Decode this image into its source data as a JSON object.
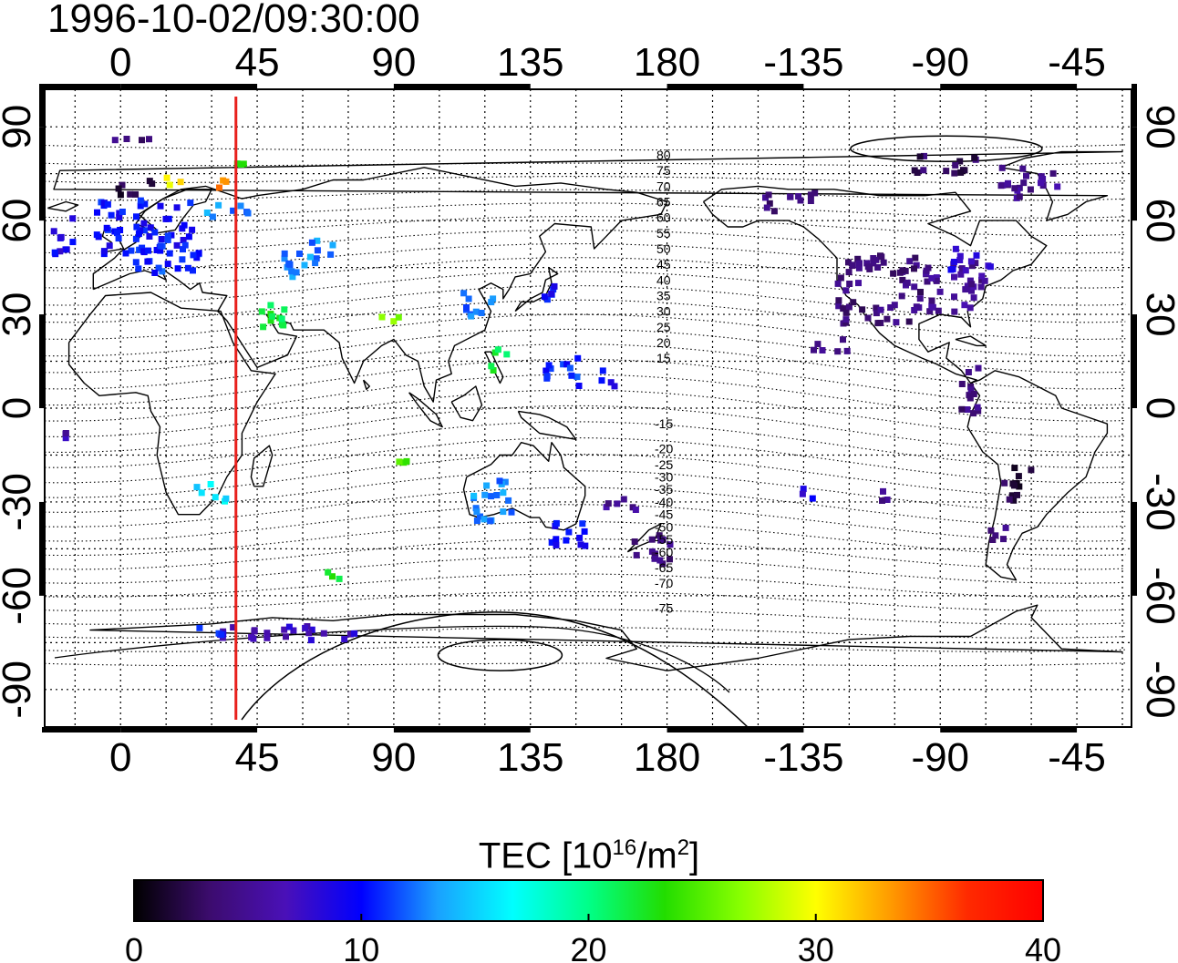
{
  "timestamp": "1996-10-02/09:30:00",
  "map": {
    "lon_ticks": [
      "0",
      "45",
      "90",
      "135",
      "180",
      "-135",
      "-90",
      "-45"
    ],
    "lon_tick_values": [
      0,
      45,
      90,
      135,
      180,
      225,
      270,
      315
    ],
    "lat_ticks": [
      "90",
      "60",
      "30",
      "0",
      "-30",
      "-60",
      "-90"
    ],
    "lat_tick_values": [
      90,
      60,
      30,
      0,
      -30,
      -60,
      -90
    ],
    "lon_range": [
      -25,
      333
    ],
    "lat_range": [
      -102,
      102
    ],
    "meridian_marker": {
      "lon": 38,
      "color": "#e8201c"
    },
    "contour_labels_north": [
      "80",
      "75",
      "70",
      "65",
      "60",
      "55",
      "50",
      "45",
      "40",
      "35",
      "30",
      "25",
      "20",
      "15"
    ],
    "contour_labels_north_lat": [
      81,
      76,
      71,
      66,
      61,
      56,
      51,
      46,
      41,
      36,
      31,
      26,
      21,
      16
    ],
    "contour_labels_south": [
      "-15",
      "-20",
      "-25",
      "-30",
      "-35",
      "-40",
      "-45",
      "-50",
      "-55",
      "-60",
      "-65",
      "-70",
      "-75"
    ],
    "contour_labels_south_lat": [
      -5,
      -13,
      -18,
      -22,
      -26,
      -30,
      -34,
      -38,
      -42,
      -46,
      -51,
      -56,
      -64
    ]
  },
  "colorbar": {
    "title_main": "TEC  [10",
    "title_exp1": "16",
    "title_mid": "/m",
    "title_exp2": "2",
    "title_end": "]",
    "tick_labels": [
      "0",
      "10",
      "20",
      "30",
      "40"
    ],
    "tick_values": [
      0,
      10,
      20,
      30,
      40
    ],
    "min": 0,
    "max": 40,
    "stops": [
      "#000000",
      "#3c0c6e",
      "#4a10b8",
      "#0000ff",
      "#1aa0ff",
      "#00ffff",
      "#00ff88",
      "#22dd00",
      "#88ff00",
      "#ffff00",
      "#ff9900",
      "#ff2a00",
      "#ff0000"
    ]
  },
  "tec_clusters": [
    {
      "lon": 8,
      "lat": 58,
      "w": 32,
      "h": 18,
      "tec": 10
    },
    {
      "lon": 15,
      "lat": 48,
      "w": 22,
      "h": 10,
      "tec": 11
    },
    {
      "lon": 5,
      "lat": 70,
      "w": 12,
      "h": 6,
      "tec": 2
    },
    {
      "lon": 18,
      "lat": 72,
      "w": 8,
      "h": 4,
      "tec": 30
    },
    {
      "lon": 32,
      "lat": 72,
      "w": 6,
      "h": 4,
      "tec": 34
    },
    {
      "lon": 5,
      "lat": 86,
      "w": 18,
      "h": 2,
      "tec": 4
    },
    {
      "lon": 35,
      "lat": 63,
      "w": 18,
      "h": 4,
      "tec": 13
    },
    {
      "lon": 40,
      "lat": 79,
      "w": 8,
      "h": 3,
      "tec": 23
    },
    {
      "lon": 62,
      "lat": 48,
      "w": 16,
      "h": 12,
      "tec": 13
    },
    {
      "lon": 50,
      "lat": 30,
      "w": 14,
      "h": 8,
      "tec": 22
    },
    {
      "lon": 90,
      "lat": 28,
      "w": 8,
      "h": 4,
      "tec": 27
    },
    {
      "lon": 118,
      "lat": 32,
      "w": 10,
      "h": 10,
      "tec": 12
    },
    {
      "lon": 125,
      "lat": 16,
      "w": 6,
      "h": 8,
      "tec": 22
    },
    {
      "lon": 145,
      "lat": 12,
      "w": 12,
      "h": 10,
      "tec": 11
    },
    {
      "lon": 160,
      "lat": 10,
      "w": 6,
      "h": 6,
      "tec": 9
    },
    {
      "lon": 140,
      "lat": 36,
      "w": 10,
      "h": 6,
      "tec": 10
    },
    {
      "lon": 122,
      "lat": -30,
      "w": 14,
      "h": 14,
      "tec": 13
    },
    {
      "lon": 148,
      "lat": -40,
      "w": 12,
      "h": 10,
      "tec": 10
    },
    {
      "lon": 165,
      "lat": -30,
      "w": 10,
      "h": 6,
      "tec": 5
    },
    {
      "lon": 175,
      "lat": -45,
      "w": 14,
      "h": 10,
      "tec": 4
    },
    {
      "lon": 95,
      "lat": -18,
      "w": 8,
      "h": 3,
      "tec": 24
    },
    {
      "lon": 30,
      "lat": -27,
      "w": 10,
      "h": 6,
      "tec": 16
    },
    {
      "lon": 70,
      "lat": -53,
      "w": 8,
      "h": 4,
      "tec": 22
    },
    {
      "lon": 55,
      "lat": -72,
      "w": 45,
      "h": 5,
      "tec": 7
    },
    {
      "lon": 30,
      "lat": -72,
      "w": 10,
      "h": 4,
      "tec": 10
    },
    {
      "lon": 250,
      "lat": 38,
      "w": 28,
      "h": 22,
      "tec": 4
    },
    {
      "lon": 275,
      "lat": 38,
      "w": 20,
      "h": 18,
      "tec": 5
    },
    {
      "lon": 280,
      "lat": 48,
      "w": 14,
      "h": 8,
      "tec": 8
    },
    {
      "lon": 270,
      "lat": 78,
      "w": 24,
      "h": 6,
      "tec": 3
    },
    {
      "lon": 300,
      "lat": 72,
      "w": 20,
      "h": 10,
      "tec": 5
    },
    {
      "lon": 280,
      "lat": 5,
      "w": 8,
      "h": 16,
      "tec": 4
    },
    {
      "lon": 295,
      "lat": -25,
      "w": 10,
      "h": 12,
      "tec": 2
    },
    {
      "lon": 290,
      "lat": -40,
      "w": 8,
      "h": 6,
      "tec": 4
    },
    {
      "lon": 235,
      "lat": 20,
      "w": 14,
      "h": 4,
      "tec": 4
    },
    {
      "lon": 250,
      "lat": -28,
      "w": 6,
      "h": 4,
      "tec": 5
    },
    {
      "lon": 225,
      "lat": -27,
      "w": 6,
      "h": 4,
      "tec": 9
    },
    {
      "lon": -18,
      "lat": 55,
      "w": 8,
      "h": 12,
      "tec": 9
    },
    {
      "lon": -18,
      "lat": -10,
      "w": 4,
      "h": 6,
      "tec": 6
    },
    {
      "lon": 220,
      "lat": 66,
      "w": 20,
      "h": 6,
      "tec": 4
    }
  ]
}
